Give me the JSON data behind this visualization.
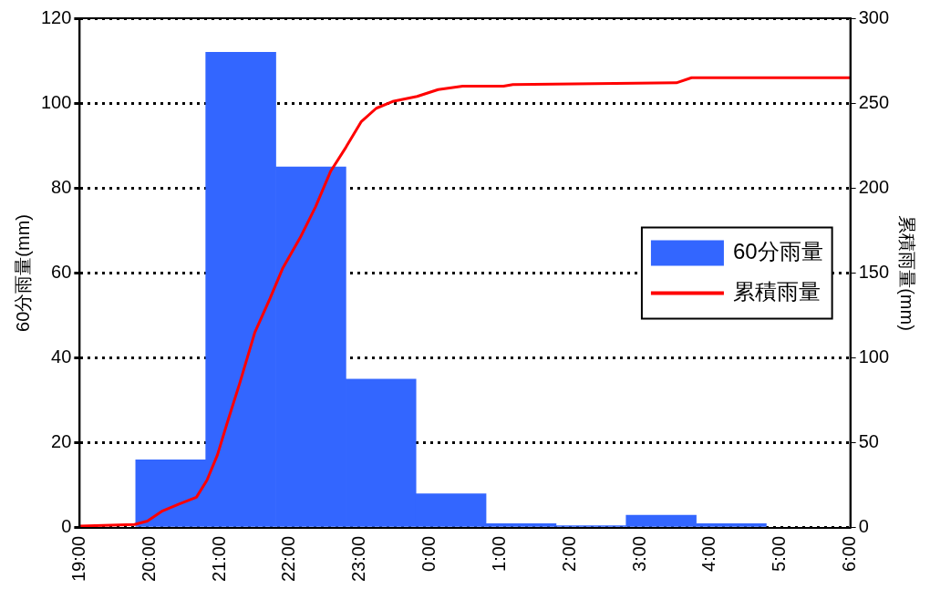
{
  "chart_data": {
    "type": "histogram",
    "ylabel": "60分雨量(mm)",
    "y2label": "累積雨量(mm)",
    "bins": [
      "2000-01-01T19:48",
      "2000-01-01T20:48",
      "2000-01-01T21:48",
      "2000-01-01T22:48",
      "2000-01-01T23:48",
      "2000-01-02T00:48",
      "2000-01-02T01:48",
      "2000-01-02T02:48",
      "2000-01-02T03:48",
      "2000-01-02T04:48"
    ],
    "series": [
      {
        "name": "60分雨量",
        "color": "#3366ff",
        "values": [
          16,
          112,
          85,
          35,
          8,
          1,
          0.5,
          3,
          1
        ]
      },
      {
        "name": "累積雨量",
        "type": "line",
        "axis": "y2",
        "color": "#ff0000",
        "x": [
          "2000-01-01T19:00",
          "2000-01-01T19:47",
          "2000-01-01T19:58",
          "2000-01-01T20:11",
          "2000-01-01T20:25",
          "2000-01-01T20:40",
          "2000-01-01T20:49",
          "2000-01-01T20:58",
          "2000-01-01T21:06",
          "2000-01-01T21:17",
          "2000-01-01T21:30",
          "2000-01-01T21:43",
          "2000-01-01T21:54",
          "2000-01-01T22:09",
          "2000-01-01T22:22",
          "2000-01-01T22:35",
          "2000-01-01T22:48",
          "2000-01-01T23:01",
          "2000-01-01T23:14",
          "2000-01-01T23:28",
          "2000-01-01T23:49",
          "2000-01-02T00:07",
          "2000-01-02T00:28",
          "2000-01-02T01:03",
          "2000-01-02T01:11",
          "2000-01-02T03:31",
          "2000-01-02T03:44",
          "2000-01-02T06:00"
        ],
        "values": [
          1,
          2,
          4,
          10,
          14,
          18,
          28,
          43,
          61,
          85,
          115,
          135,
          153,
          171,
          189,
          210,
          224,
          239,
          247,
          251,
          254,
          258,
          260,
          260,
          261,
          262,
          265,
          265
        ]
      }
    ],
    "xlim": [
      "2000-01-01T19:00",
      "2000-01-02T06:00"
    ],
    "xticks": [
      {
        "value": "2000-01-01T19:00",
        "label": "19:00"
      },
      {
        "value": "2000-01-01T20:00",
        "label": "20:00"
      },
      {
        "value": "2000-01-01T21:00",
        "label": "21:00"
      },
      {
        "value": "2000-01-01T22:00",
        "label": "22:00"
      },
      {
        "value": "2000-01-01T23:00",
        "label": "23:00"
      },
      {
        "value": "2000-01-02T00:00",
        "label": "0:00"
      },
      {
        "value": "2000-01-02T01:00",
        "label": "1:00"
      },
      {
        "value": "2000-01-02T02:00",
        "label": "2:00"
      },
      {
        "value": "2000-01-02T03:00",
        "label": "3:00"
      },
      {
        "value": "2000-01-02T04:00",
        "label": "4:00"
      },
      {
        "value": "2000-01-02T05:00",
        "label": "5:00"
      },
      {
        "value": "2000-01-02T06:00",
        "label": "6:00"
      }
    ],
    "ylim": [
      0,
      120
    ],
    "yticks": [
      0,
      20,
      40,
      60,
      80,
      100,
      120
    ],
    "y2lim": [
      0,
      300
    ],
    "y2ticks": [
      0,
      50,
      100,
      150,
      200,
      250,
      300
    ],
    "grid": "y",
    "legend": "right"
  }
}
